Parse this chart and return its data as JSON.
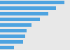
{
  "values": [
    285,
    248,
    215,
    178,
    140,
    118,
    112,
    103,
    62
  ],
  "bar_color": "#4da3e0",
  "background_color": "#e8e8e8",
  "plot_background": "#e8e8e8",
  "xlim": [
    0,
    310
  ]
}
